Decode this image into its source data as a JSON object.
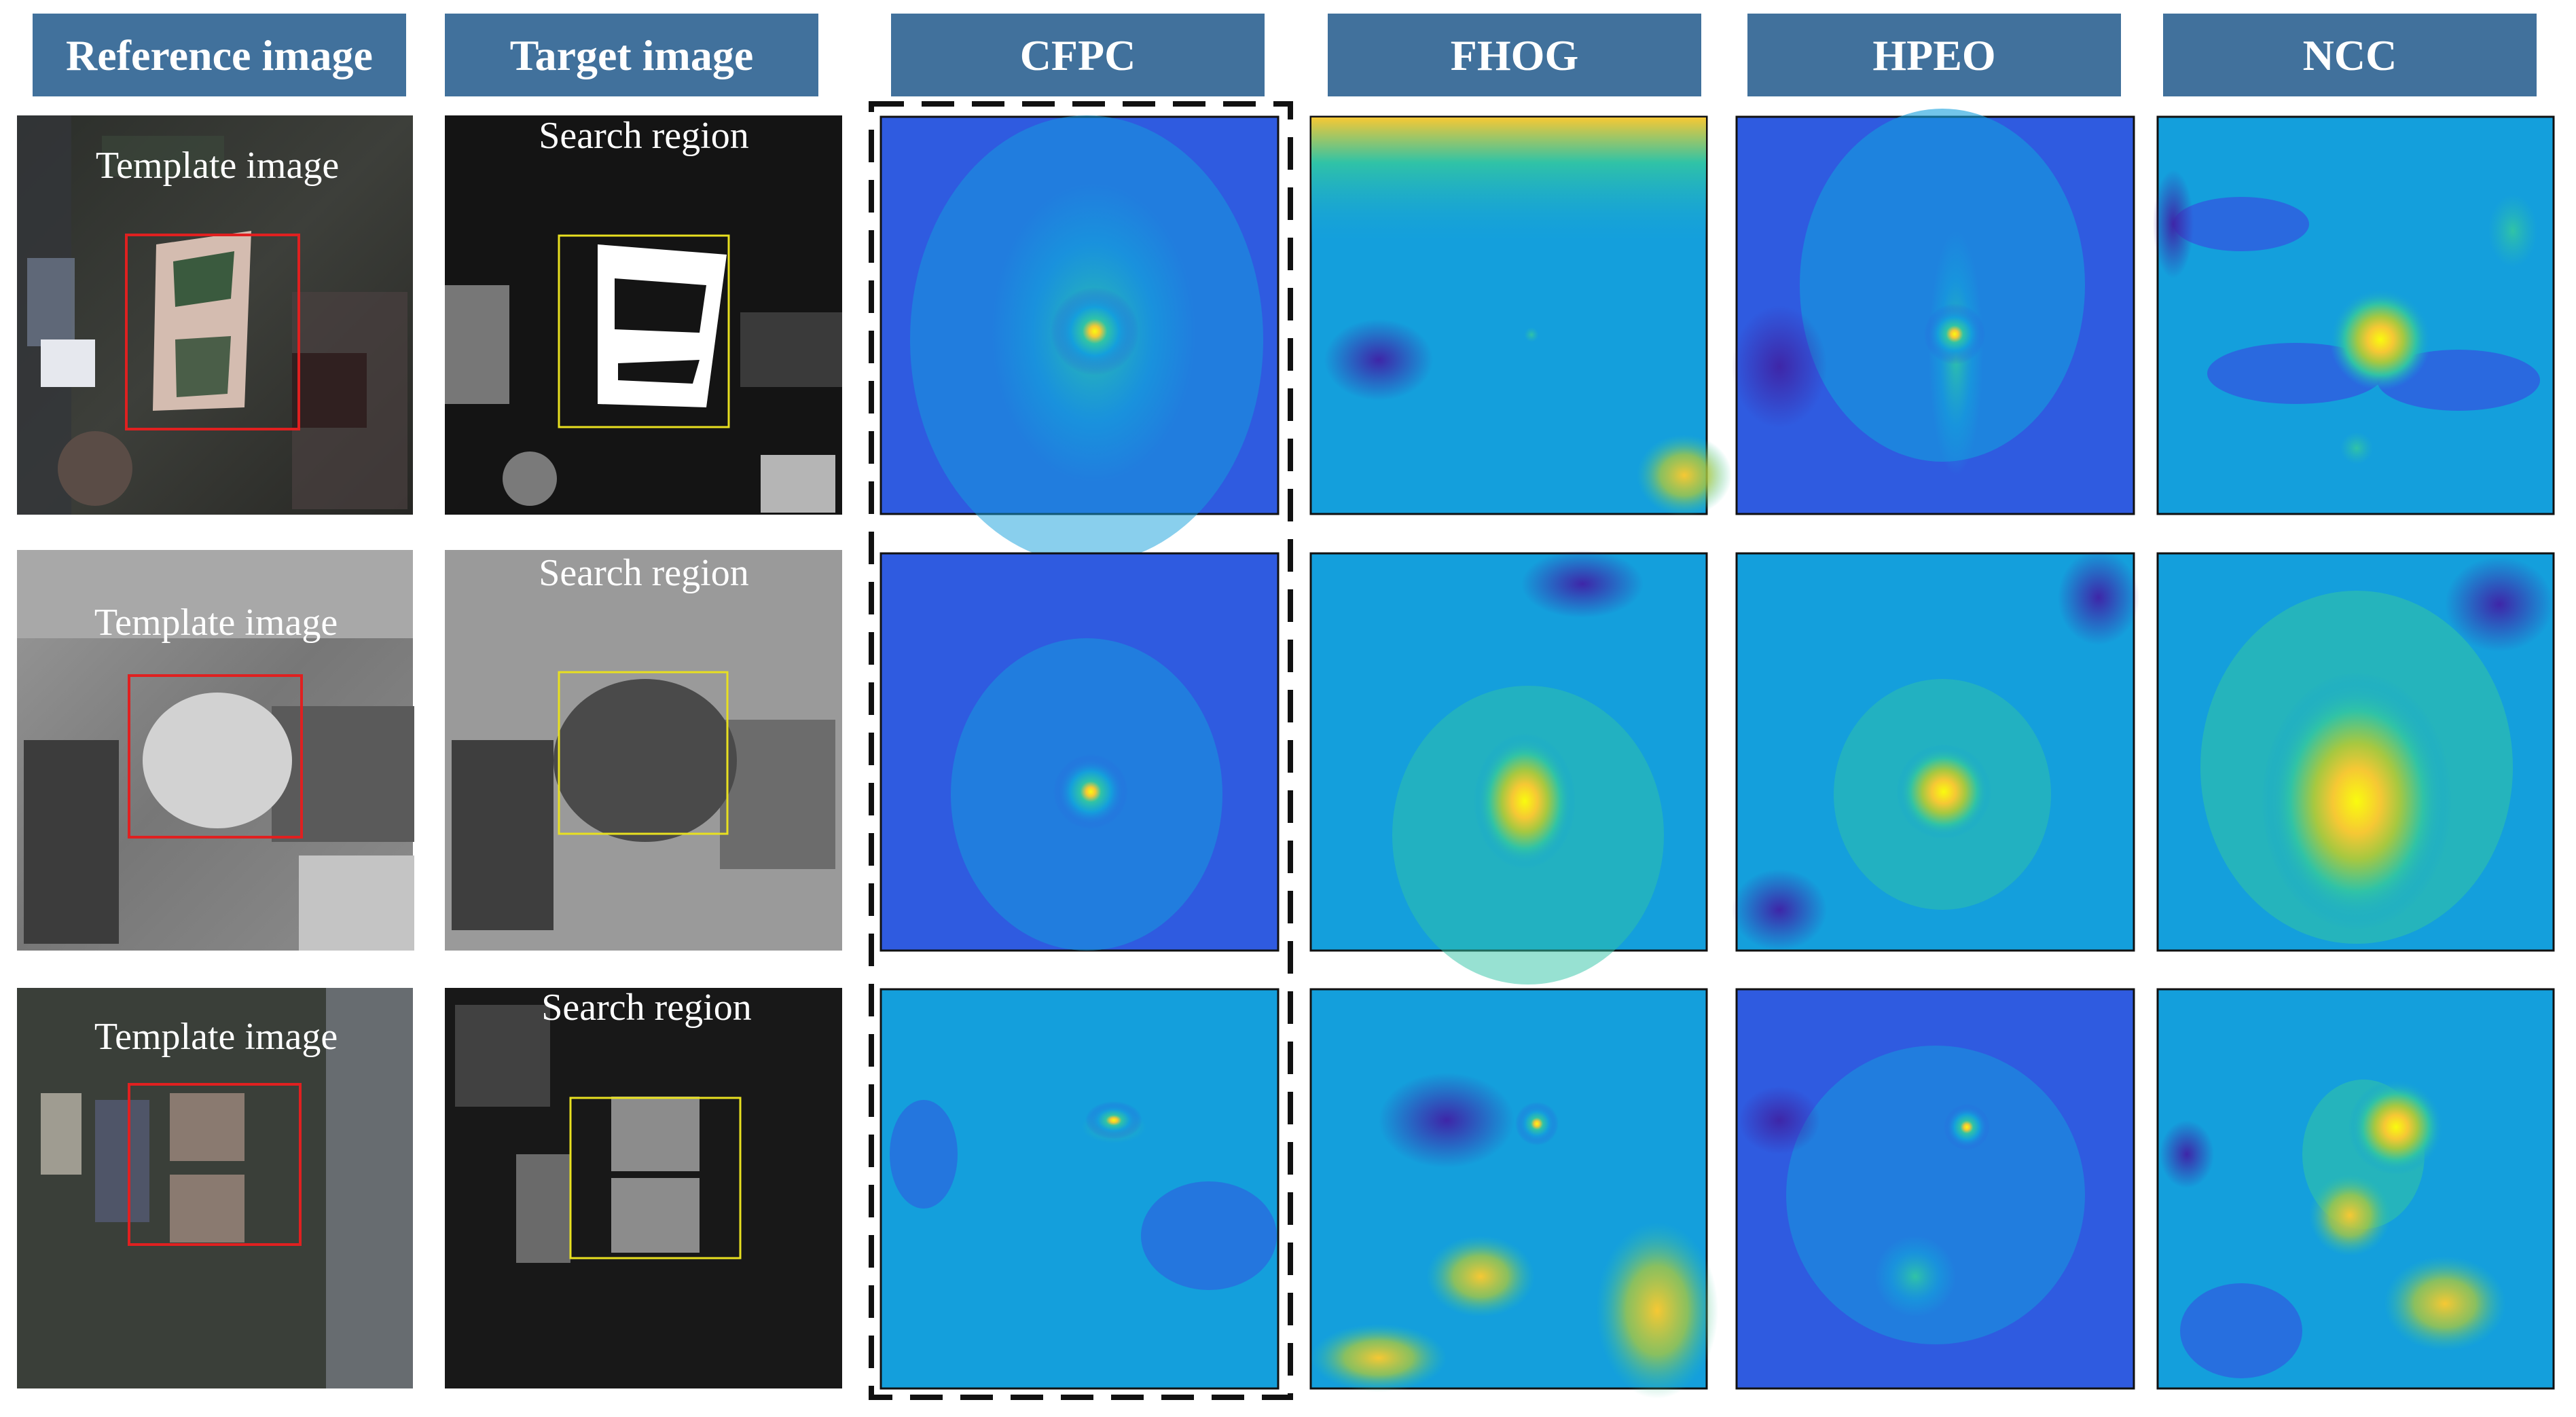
{
  "headers": {
    "reference": "Reference image",
    "target": "Target image",
    "cfpc": "CFPC",
    "fhog": "FHOG",
    "hpeo": "HPEO",
    "ncc": "NCC"
  },
  "overlays": {
    "template_label": "Template image",
    "search_label": "Search region"
  },
  "colors": {
    "header_bg": "#41719C",
    "header_text": "#ffffff",
    "template_box": "#e02020",
    "search_box": "#e8e020",
    "dashed_frame": "#111111",
    "colormap": [
      "#3e26a8",
      "#2f5be0",
      "#149fdc",
      "#30c3a6",
      "#a7c840",
      "#f6c834",
      "#f9fb0e"
    ]
  },
  "rows": [
    {
      "id": "row-1",
      "template_label": "Template image",
      "search_label": "Search region"
    },
    {
      "id": "row-2",
      "template_label": "Template image",
      "search_label": "Search region"
    },
    {
      "id": "row-3",
      "template_label": "Template image",
      "search_label": "Search region"
    }
  ]
}
